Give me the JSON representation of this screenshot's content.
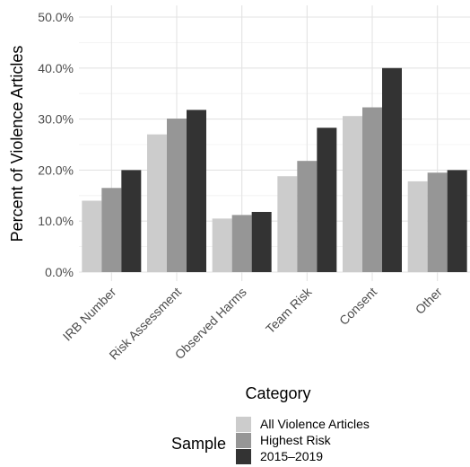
{
  "chart_data": {
    "type": "bar",
    "title": "",
    "xlabel": "Category",
    "ylabel": "Percent of Violence Articles",
    "ylim": [
      0,
      50
    ],
    "yticks": [
      "0.0%",
      "10.0%",
      "20.0%",
      "30.0%",
      "40.0%",
      "50.0%"
    ],
    "ytick_values": [
      0,
      10,
      20,
      30,
      40,
      50
    ],
    "grid": true,
    "legend_position": "bottom",
    "legend_title": "Sample",
    "categories": [
      "IRB Number",
      "Risk Assessment",
      "Observed Harms",
      "Team Risk",
      "Consent",
      "Other"
    ],
    "series": [
      {
        "name": "All Violence Articles",
        "values": [
          14.0,
          27.0,
          10.5,
          18.8,
          30.6,
          17.8
        ]
      },
      {
        "name": "Highest Risk",
        "values": [
          16.5,
          30.1,
          11.2,
          21.8,
          32.3,
          19.5
        ]
      },
      {
        "name": "2015–2019",
        "values": [
          20.0,
          31.8,
          11.8,
          28.3,
          40.0,
          20.0
        ]
      }
    ],
    "colors": [
      "#cccccc",
      "#969696",
      "#333333"
    ]
  }
}
